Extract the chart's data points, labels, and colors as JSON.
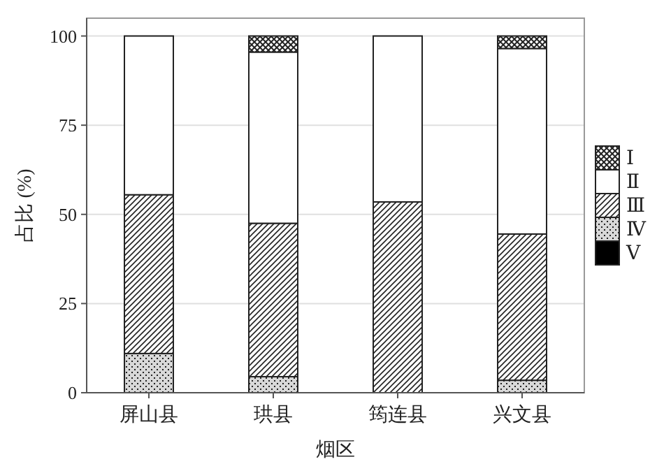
{
  "chart_data": {
    "type": "bar",
    "stacked": true,
    "xlabel": "烟区",
    "ylabel": "占比 (%)",
    "categories": [
      "屏山县",
      "珙县",
      "筠连县",
      "兴文县"
    ],
    "series": [
      {
        "name": "Ⅴ",
        "color": "#000000",
        "values": [
          0,
          0,
          0,
          0
        ]
      },
      {
        "name": "Ⅳ",
        "color": "#222222",
        "values": [
          11,
          4.5,
          0,
          3.5
        ]
      },
      {
        "name": "Ⅲ",
        "color": "#222222",
        "values": [
          44.5,
          43,
          53.5,
          41
        ]
      },
      {
        "name": "Ⅱ",
        "color": "#ffffff",
        "values": [
          44.5,
          48,
          46.5,
          52
        ]
      },
      {
        "name": "Ⅰ",
        "color": "#222222",
        "values": [
          0,
          4.5,
          0,
          3.5
        ]
      }
    ],
    "ylim": [
      0,
      105
    ],
    "yticks": [
      0,
      25,
      50,
      75,
      100
    ],
    "grid": "y",
    "legend": "right"
  }
}
